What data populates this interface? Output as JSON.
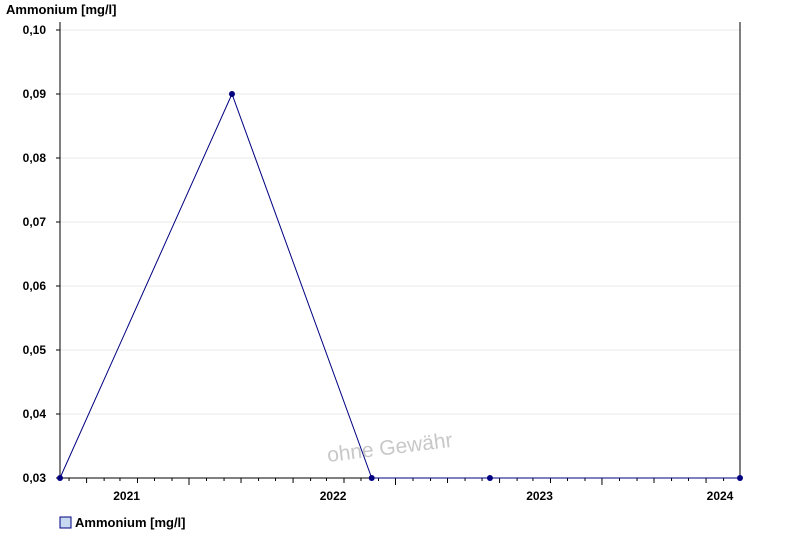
{
  "chart_data": {
    "type": "line",
    "title": "",
    "ylabel": "Ammonium [mg/l]",
    "xlabel": "",
    "x_ticks": [
      "2021",
      "2022",
      "2023",
      "2024"
    ],
    "y_ticks": [
      "0,03",
      "0,04",
      "0,05",
      "0,06",
      "0,07",
      "0,08",
      "0,09",
      "0,10"
    ],
    "ylim": [
      0.03,
      0.1
    ],
    "xlim": [
      "2020-11-15",
      "2024-03-01"
    ],
    "grid": true,
    "legend_position": "bottom-left",
    "watermark": "ohne Gewähr",
    "series": [
      {
        "name": "Ammonium [mg/l]",
        "color": "#000080",
        "points": [
          {
            "x": "2020-11-15",
            "y": 0.03
          },
          {
            "x": "2021-09-15",
            "y": 0.09
          },
          {
            "x": "2022-05-20",
            "y": 0.03
          },
          {
            "x": "2022-12-15",
            "y": 0.03
          },
          {
            "x": "2024-03-01",
            "y": 0.03
          }
        ]
      }
    ],
    "legend_swatch_color": "#c6d9f1"
  }
}
